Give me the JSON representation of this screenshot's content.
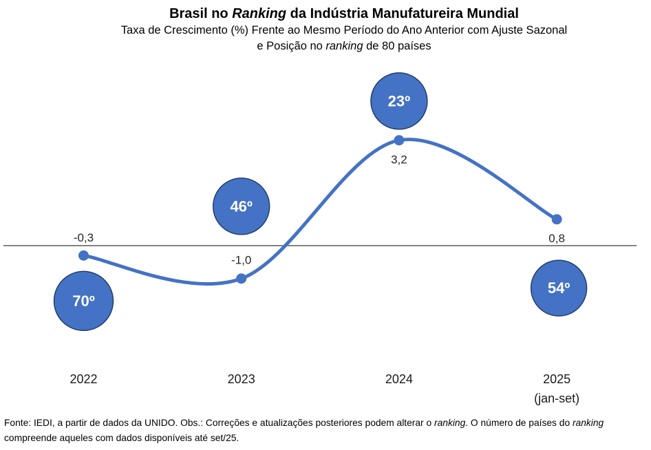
{
  "header": {
    "title_segments": [
      {
        "text": "Brasil no ",
        "italic": false
      },
      {
        "text": "Ranking",
        "italic": true
      },
      {
        "text": " da Indústria Manufatureira Mundial",
        "italic": false
      }
    ],
    "subtitle_line1": "Taxa de Crescimento (%) Frente ao Mesmo Período do Ano Anterior com Ajuste Sazonal",
    "subtitle_line2_segments": [
      {
        "text": "e Posição no ",
        "italic": false
      },
      {
        "text": "ranking",
        "italic": true
      },
      {
        "text": " de 80 países",
        "italic": false
      }
    ]
  },
  "chart_data": {
    "type": "line",
    "smooth": true,
    "title": "Brasil no Ranking da Indústria Manufatureira Mundial",
    "subtitle": "Taxa de Crescimento (%) Frente ao Mesmo Período do Ano Anterior com Ajuste Sazonal e Posição no ranking de 80 países",
    "categories": [
      "2022",
      "2023",
      "2024",
      "2025"
    ],
    "category_sub_labels": [
      "",
      "",
      "",
      "(jan-set)"
    ],
    "series": [
      {
        "name": "Taxa de crescimento (%)",
        "values": [
          -0.3,
          -1.0,
          3.2,
          0.8
        ]
      }
    ],
    "value_labels": [
      "-0,3",
      "-1,0",
      "3,2",
      "0,8"
    ],
    "rank_labels": [
      "70º",
      "46º",
      "23º",
      "54º"
    ],
    "ranking_total_countries": 80,
    "ylim": [
      -3.6,
      5.4
    ],
    "grid": false,
    "legend": false,
    "zero_line": true,
    "label_positions": [
      "above",
      "above",
      "below",
      "below"
    ],
    "bubble_positions": [
      "below",
      "above",
      "above",
      "below"
    ],
    "colors": {
      "line": "#4472C4",
      "marker": "#4472C4",
      "bubble_fill": "#4472C4",
      "bubble_stroke": "#1F3864",
      "bubble_text": "#FFFFFF",
      "zero_line": "#595959",
      "label_text": "#262626",
      "category_text": "#1a1a1a"
    }
  },
  "footer": {
    "line1_segments": [
      {
        "text": "Fonte: IEDI, a partir de dados da UNIDO. Obs.: Correções e atualizações posteriores podem alterar o ",
        "italic": false
      },
      {
        "text": "ranking",
        "italic": true
      },
      {
        "text": ". O número de países do ",
        "italic": false
      },
      {
        "text": "ranking",
        "italic": true
      }
    ],
    "line2": "compreende aqueles com dados disponíveis até set/25."
  }
}
